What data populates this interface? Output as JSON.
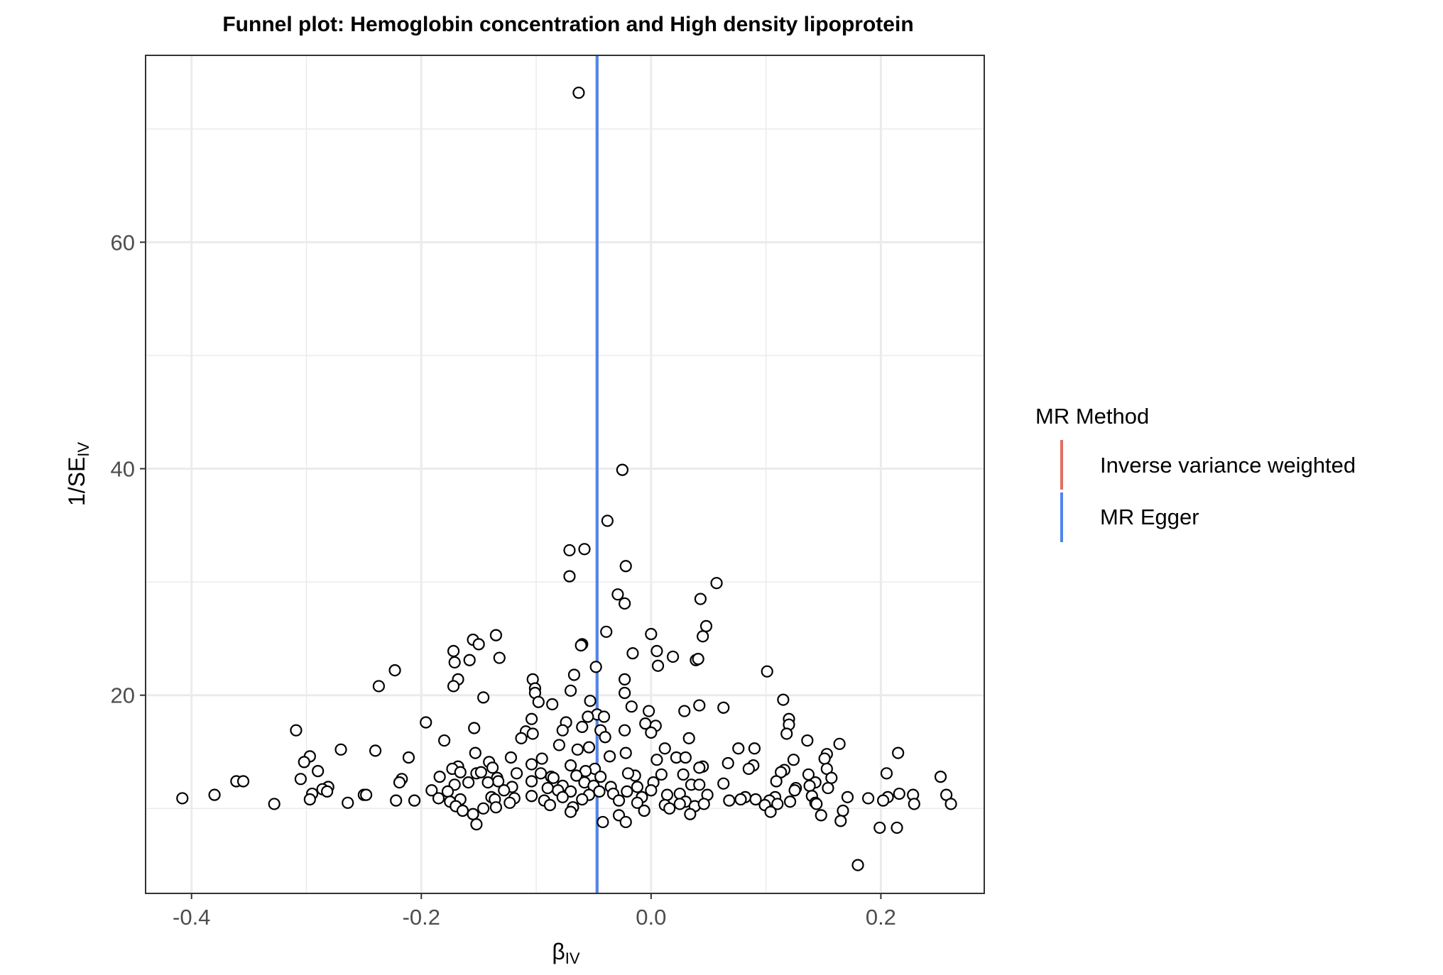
{
  "chart_data": {
    "type": "scatter",
    "title": "Funnel plot: Hemoglobin concentration and High density lipoprotein",
    "xlabel": {
      "main": "β",
      "sub": "IV"
    },
    "ylabel": {
      "main": "1/SE",
      "sub": "IV"
    },
    "xlim": [
      -0.44,
      0.29
    ],
    "ylim": [
      2.5,
      76.5
    ],
    "x_ticks": [
      -0.4,
      -0.2,
      0.0,
      0.2
    ],
    "x_tick_labels": [
      "-0.4",
      "-0.2",
      "0.0",
      "0.2"
    ],
    "y_ticks": [
      20,
      40,
      60
    ],
    "y_tick_labels": [
      "20",
      "40",
      "60"
    ],
    "x_minor_grid": [
      -0.3,
      -0.1,
      0.1
    ],
    "y_minor_grid": [
      10,
      30,
      50,
      70
    ],
    "grid": true,
    "legend": {
      "title": "MR Method",
      "position": "right",
      "entries": [
        {
          "label": "Inverse variance weighted",
          "color": "#e16f62"
        },
        {
          "label": "MR Egger",
          "color": "#4f86ea"
        }
      ]
    },
    "lines": [
      {
        "method": "Inverse variance weighted",
        "x": -0.047,
        "color": "#e16f62"
      },
      {
        "method": "MR Egger",
        "x": -0.047,
        "color": "#4f86ea"
      }
    ],
    "point_style": {
      "fill": "#ffffff",
      "stroke": "#000000"
    },
    "points": [
      [
        -0.063,
        73.2
      ],
      [
        -0.025,
        39.9
      ],
      [
        -0.038,
        35.4
      ],
      [
        -0.071,
        32.8
      ],
      [
        -0.058,
        32.9
      ],
      [
        -0.022,
        31.4
      ],
      [
        -0.071,
        30.5
      ],
      [
        0.057,
        29.9
      ],
      [
        -0.029,
        28.9
      ],
      [
        0.043,
        28.5
      ],
      [
        -0.023,
        28.1
      ],
      [
        0.048,
        26.1
      ],
      [
        -0.039,
        25.6
      ],
      [
        0.0,
        25.4
      ],
      [
        0.045,
        25.2
      ],
      [
        -0.135,
        25.3
      ],
      [
        -0.155,
        24.9
      ],
      [
        -0.15,
        24.5
      ],
      [
        -0.06,
        24.5
      ],
      [
        -0.061,
        24.4
      ],
      [
        -0.172,
        23.9
      ],
      [
        -0.016,
        23.7
      ],
      [
        0.005,
        23.9
      ],
      [
        0.019,
        23.4
      ],
      [
        0.039,
        23.1
      ],
      [
        0.041,
        23.2
      ],
      [
        -0.132,
        23.3
      ],
      [
        -0.158,
        23.1
      ],
      [
        -0.171,
        22.9
      ],
      [
        0.006,
        22.6
      ],
      [
        -0.048,
        22.5
      ],
      [
        0.101,
        22.1
      ],
      [
        -0.223,
        22.2
      ],
      [
        -0.103,
        21.4
      ],
      [
        -0.067,
        21.8
      ],
      [
        -0.168,
        21.4
      ],
      [
        -0.023,
        21.4
      ],
      [
        -0.172,
        20.8
      ],
      [
        -0.237,
        20.8
      ],
      [
        -0.101,
        20.6
      ],
      [
        -0.101,
        20.2
      ],
      [
        -0.07,
        20.4
      ],
      [
        -0.023,
        20.2
      ],
      [
        -0.146,
        19.8
      ],
      [
        -0.098,
        19.4
      ],
      [
        -0.053,
        19.5
      ],
      [
        0.115,
        19.6
      ],
      [
        -0.086,
        19.2
      ],
      [
        -0.017,
        19.0
      ],
      [
        0.042,
        19.1
      ],
      [
        0.063,
        18.9
      ],
      [
        -0.002,
        18.6
      ],
      [
        0.029,
        18.6
      ],
      [
        -0.047,
        18.3
      ],
      [
        -0.055,
        18.1
      ],
      [
        -0.041,
        18.1
      ],
      [
        -0.104,
        17.9
      ],
      [
        0.12,
        17.9
      ],
      [
        -0.196,
        17.6
      ],
      [
        -0.074,
        17.6
      ],
      [
        -0.06,
        17.2
      ],
      [
        -0.005,
        17.5
      ],
      [
        0.004,
        17.3
      ],
      [
        0.12,
        17.4
      ],
      [
        -0.154,
        17.1
      ],
      [
        -0.077,
        16.9
      ],
      [
        -0.044,
        16.9
      ],
      [
        -0.023,
        16.9
      ],
      [
        -0.109,
        16.8
      ],
      [
        -0.103,
        16.6
      ],
      [
        0.0,
        16.7
      ],
      [
        0.118,
        16.6
      ],
      [
        -0.309,
        16.9
      ],
      [
        -0.04,
        16.3
      ],
      [
        0.033,
        16.2
      ],
      [
        -0.113,
        16.2
      ],
      [
        -0.18,
        16.0
      ],
      [
        0.136,
        16.0
      ],
      [
        0.164,
        15.7
      ],
      [
        -0.08,
        15.6
      ],
      [
        0.076,
        15.3
      ],
      [
        0.09,
        15.3
      ],
      [
        -0.054,
        15.4
      ],
      [
        -0.064,
        15.2
      ],
      [
        -0.27,
        15.2
      ],
      [
        -0.24,
        15.1
      ],
      [
        0.012,
        15.3
      ],
      [
        -0.153,
        14.9
      ],
      [
        0.215,
        14.9
      ],
      [
        -0.022,
        14.9
      ],
      [
        0.153,
        14.8
      ],
      [
        -0.211,
        14.5
      ],
      [
        0.124,
        14.3
      ],
      [
        -0.297,
        14.6
      ],
      [
        -0.036,
        14.6
      ],
      [
        0.005,
        14.3
      ],
      [
        0.022,
        14.5
      ],
      [
        0.03,
        14.5
      ],
      [
        -0.122,
        14.5
      ],
      [
        -0.095,
        14.4
      ],
      [
        -0.141,
        14.1
      ],
      [
        -0.302,
        14.1
      ],
      [
        0.151,
        14.4
      ],
      [
        -0.07,
        13.8
      ],
      [
        0.067,
        14.0
      ],
      [
        0.089,
        13.8
      ],
      [
        0.045,
        13.7
      ],
      [
        -0.104,
        13.9
      ],
      [
        -0.138,
        13.6
      ],
      [
        -0.049,
        13.5
      ],
      [
        -0.168,
        13.7
      ],
      [
        0.153,
        13.5
      ],
      [
        -0.057,
        13.3
      ],
      [
        -0.173,
        13.5
      ],
      [
        0.116,
        13.4
      ],
      [
        0.085,
        13.5
      ],
      [
        0.042,
        13.6
      ],
      [
        -0.152,
        13.1
      ],
      [
        -0.148,
        13.2
      ],
      [
        -0.117,
        13.1
      ],
      [
        -0.096,
        13.1
      ],
      [
        -0.087,
        12.8
      ],
      [
        -0.134,
        12.7
      ],
      [
        -0.065,
        12.9
      ],
      [
        -0.044,
        12.8
      ],
      [
        -0.014,
        12.9
      ],
      [
        0.009,
        13.0
      ],
      [
        -0.085,
        12.7
      ],
      [
        -0.29,
        13.3
      ],
      [
        -0.166,
        13.2
      ],
      [
        -0.02,
        13.1
      ],
      [
        0.028,
        13.0
      ],
      [
        0.113,
        13.2
      ],
      [
        0.137,
        13.0
      ],
      [
        0.157,
        12.7
      ],
      [
        0.205,
        13.1
      ],
      [
        -0.305,
        12.6
      ],
      [
        -0.217,
        12.6
      ],
      [
        -0.184,
        12.8
      ],
      [
        -0.104,
        12.4
      ],
      [
        -0.058,
        12.3
      ],
      [
        0.002,
        12.3
      ],
      [
        -0.133,
        12.4
      ],
      [
        -0.142,
        12.3
      ],
      [
        -0.159,
        12.3
      ],
      [
        -0.171,
        12.1
      ],
      [
        0.109,
        12.4
      ],
      [
        0.143,
        12.3
      ],
      [
        0.252,
        12.8
      ],
      [
        -0.361,
        12.4
      ],
      [
        -0.355,
        12.4
      ],
      [
        -0.219,
        12.3
      ],
      [
        -0.281,
        11.9
      ],
      [
        -0.286,
        11.7
      ],
      [
        -0.09,
        11.8
      ],
      [
        -0.077,
        12.0
      ],
      [
        -0.035,
        11.9
      ],
      [
        -0.05,
        12.0
      ],
      [
        -0.012,
        11.9
      ],
      [
        0.035,
        12.1
      ],
      [
        0.042,
        12.1
      ],
      [
        0.063,
        12.2
      ],
      [
        0.126,
        11.8
      ],
      [
        0.138,
        12.0
      ],
      [
        0.154,
        11.8
      ],
      [
        -0.121,
        11.9
      ],
      [
        -0.081,
        11.6
      ],
      [
        -0.282,
        11.5
      ],
      [
        -0.191,
        11.6
      ],
      [
        -0.177,
        11.5
      ],
      [
        -0.128,
        11.6
      ],
      [
        -0.07,
        11.5
      ],
      [
        -0.045,
        11.5
      ],
      [
        -0.033,
        11.3
      ],
      [
        -0.021,
        11.5
      ],
      [
        0.0,
        11.6
      ],
      [
        0.025,
        11.3
      ],
      [
        0.049,
        11.2
      ],
      [
        0.125,
        11.6
      ],
      [
        0.14,
        11.1
      ],
      [
        0.228,
        11.2
      ],
      [
        0.257,
        11.2
      ],
      [
        -0.38,
        11.2
      ],
      [
        -0.25,
        11.2
      ],
      [
        -0.248,
        11.2
      ],
      [
        -0.295,
        11.3
      ],
      [
        -0.139,
        11.0
      ],
      [
        -0.104,
        11.1
      ],
      [
        -0.077,
        11.0
      ],
      [
        -0.054,
        11.2
      ],
      [
        -0.008,
        11.0
      ],
      [
        0.014,
        11.2
      ],
      [
        0.082,
        11.0
      ],
      [
        0.091,
        10.8
      ],
      [
        0.108,
        11.0
      ],
      [
        0.171,
        11.0
      ],
      [
        0.189,
        10.9
      ],
      [
        0.206,
        11.0
      ],
      [
        0.216,
        11.3
      ],
      [
        -0.408,
        10.9
      ],
      [
        -0.185,
        10.9
      ],
      [
        -0.166,
        10.8
      ],
      [
        -0.136,
        10.8
      ],
      [
        -0.119,
        10.9
      ],
      [
        -0.093,
        10.7
      ],
      [
        -0.06,
        10.8
      ],
      [
        -0.028,
        10.7
      ],
      [
        0.03,
        10.6
      ],
      [
        0.068,
        10.7
      ],
      [
        0.078,
        10.8
      ],
      [
        0.103,
        10.7
      ],
      [
        0.121,
        10.6
      ],
      [
        0.143,
        10.5
      ],
      [
        -0.297,
        10.8
      ],
      [
        -0.222,
        10.7
      ],
      [
        -0.206,
        10.7
      ],
      [
        -0.175,
        10.6
      ],
      [
        -0.264,
        10.5
      ],
      [
        -0.328,
        10.4
      ],
      [
        -0.123,
        10.5
      ],
      [
        -0.088,
        10.3
      ],
      [
        -0.012,
        10.5
      ],
      [
        0.012,
        10.3
      ],
      [
        0.025,
        10.4
      ],
      [
        0.038,
        10.2
      ],
      [
        0.046,
        10.4
      ],
      [
        0.099,
        10.3
      ],
      [
        0.11,
        10.4
      ],
      [
        0.144,
        10.4
      ],
      [
        0.202,
        10.7
      ],
      [
        0.261,
        10.4
      ],
      [
        0.229,
        10.4
      ],
      [
        -0.17,
        10.2
      ],
      [
        -0.146,
        10.0
      ],
      [
        -0.135,
        10.1
      ],
      [
        -0.068,
        10.1
      ],
      [
        -0.164,
        9.8
      ],
      [
        -0.07,
        9.7
      ],
      [
        -0.006,
        9.8
      ],
      [
        0.016,
        10.0
      ],
      [
        0.104,
        9.7
      ],
      [
        0.167,
        9.8
      ],
      [
        -0.155,
        9.5
      ],
      [
        -0.028,
        9.4
      ],
      [
        0.034,
        9.5
      ],
      [
        0.148,
        9.4
      ],
      [
        -0.042,
        8.8
      ],
      [
        -0.022,
        8.8
      ],
      [
        0.165,
        8.9
      ],
      [
        -0.152,
        8.6
      ],
      [
        0.199,
        8.3
      ],
      [
        0.214,
        8.3
      ],
      [
        0.18,
        5.0
      ]
    ]
  }
}
